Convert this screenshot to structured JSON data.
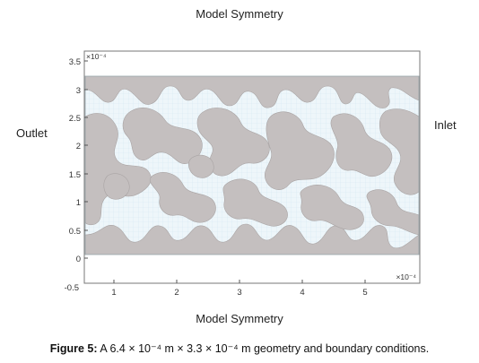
{
  "labels": {
    "top": "Model Symmetry",
    "bottom": "Model Symmetry",
    "left": "Outlet",
    "right": "Inlet"
  },
  "axes": {
    "y_multiplier": "×10⁻⁴",
    "x_multiplier": "×10⁻⁴",
    "y_ticks": [
      "3.5",
      "3",
      "2.5",
      "2",
      "1.5",
      "1",
      "0.5",
      "0",
      "-0.5"
    ],
    "x_ticks": [
      "1",
      "2",
      "3",
      "4",
      "5"
    ]
  },
  "colors": {
    "solid": "#c4bfbf",
    "fluid": "#eef6fa",
    "grid": "#cfe6f0"
  },
  "caption": {
    "label": "Figure 5:",
    "text": "A 6.4 × 10⁻⁴ m × 3.3 × 10⁻⁴ m geometry and boundary conditions."
  }
}
